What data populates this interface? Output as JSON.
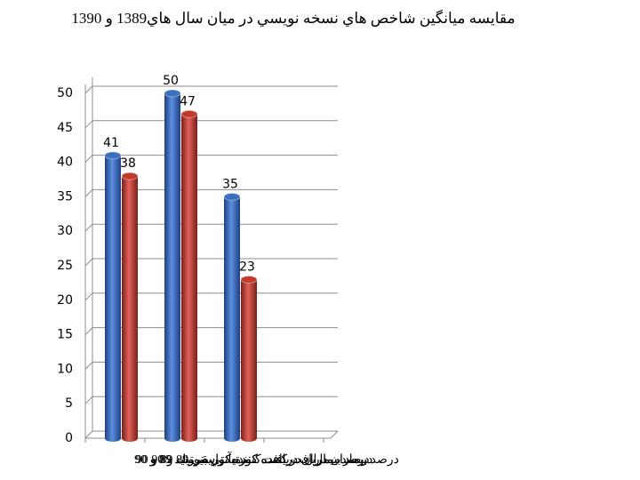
{
  "chart_data": {
    "type": "bar",
    "title": "مقايسه ميانگين شاخص هاي نسخه نويسي در ميان سال هاي1389 و 1390",
    "categories": [
      "درصد بيماران دريافت كننده آنتي بيوتيك 89 و 90",
      "درصد بيماران دريافت كننده تزريقي 89 و 90",
      "درصد بيماران دريافت كننده كورتيكواستروئيد 89 و 90"
    ],
    "series": [
      {
        "color": "#3d6fc0",
        "values": [
          41,
          50,
          35
        ]
      },
      {
        "color": "#c0392b",
        "values": [
          38,
          47,
          23
        ]
      }
    ],
    "ylim": [
      0,
      50
    ],
    "yticks": [
      0,
      5,
      10,
      15,
      20,
      25,
      30,
      35,
      40,
      45,
      50
    ],
    "grid": true
  }
}
